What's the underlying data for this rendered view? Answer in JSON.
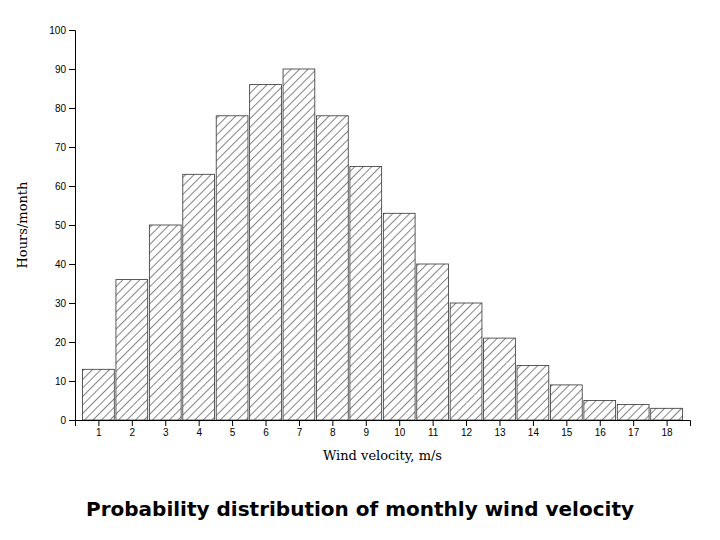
{
  "chart_data": {
    "type": "bar",
    "title": "Probability distribution of monthly wind velocity",
    "x_label": "Wind velocity, m/s",
    "y_label": "Hours/month",
    "x": [
      1,
      2,
      3,
      4,
      5,
      6,
      7,
      8,
      9,
      10,
      11,
      12,
      13,
      14,
      15,
      16,
      17,
      18
    ],
    "values": [
      13,
      36,
      50,
      63,
      78,
      86,
      90,
      78,
      65,
      53,
      40,
      30,
      21,
      14,
      9,
      5,
      4,
      3
    ],
    "color": "#333333",
    "xlim": [
      0.3,
      18.7
    ],
    "xticks": [
      1,
      2,
      3,
      4,
      5,
      6,
      7,
      8,
      9,
      10,
      11,
      12,
      13,
      14,
      15,
      16,
      17,
      18
    ],
    "ylim": [
      0,
      100
    ],
    "yticks": [
      0,
      10,
      20,
      30,
      40,
      50,
      60,
      70,
      80,
      90,
      100
    ],
    "grid": false
  }
}
